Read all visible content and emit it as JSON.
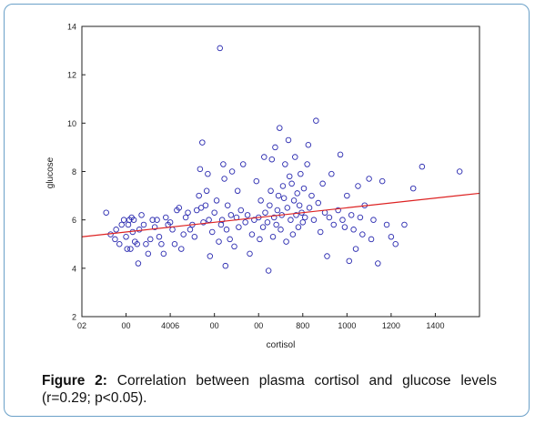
{
  "chart_data": {
    "type": "scatter",
    "xlabel": "cortisol",
    "ylabel": "glucose",
    "xlim": [
      -400,
      1400
    ],
    "ylim": [
      2,
      14
    ],
    "x_tick_values": [
      -400,
      -200,
      0,
      200,
      400,
      600,
      800,
      1000,
      1200,
      1400
    ],
    "x_tick_labels": [
      "02",
      "00",
      "4006",
      "00",
      "00",
      "800",
      "1000",
      "1200",
      "1400",
      ""
    ],
    "y_ticks": [
      2,
      4,
      6,
      8,
      10,
      12,
      14
    ],
    "grid": false,
    "marker": "open-circle",
    "colors": {
      "points": "#2b2bb0",
      "regression": "#dd2222",
      "axes": "#222222"
    },
    "regression_line": {
      "x": [
        -400,
        1400
      ],
      "y": [
        5.3,
        7.1
      ]
    },
    "points": [
      [
        -290,
        6.3
      ],
      [
        -270,
        5.4
      ],
      [
        -250,
        5.2
      ],
      [
        -245,
        5.6
      ],
      [
        -230,
        5.0
      ],
      [
        -220,
        5.8
      ],
      [
        -210,
        6.0
      ],
      [
        -200,
        5.3
      ],
      [
        -195,
        4.8
      ],
      [
        -190,
        5.8
      ],
      [
        -185,
        6.0
      ],
      [
        -180,
        4.8
      ],
      [
        -175,
        6.1
      ],
      [
        -170,
        5.5
      ],
      [
        -165,
        6.0
      ],
      [
        -160,
        5.1
      ],
      [
        -150,
        5.0
      ],
      [
        -145,
        4.2
      ],
      [
        -140,
        5.6
      ],
      [
        -130,
        6.2
      ],
      [
        -120,
        5.8
      ],
      [
        -110,
        5.0
      ],
      [
        -100,
        4.6
      ],
      [
        -90,
        5.2
      ],
      [
        -80,
        6.0
      ],
      [
        -70,
        5.7
      ],
      [
        -60,
        6.0
      ],
      [
        -50,
        5.3
      ],
      [
        -40,
        5.0
      ],
      [
        -30,
        4.6
      ],
      [
        -20,
        6.1
      ],
      [
        -10,
        5.8
      ],
      [
        0,
        5.9
      ],
      [
        10,
        5.6
      ],
      [
        20,
        5.0
      ],
      [
        30,
        6.4
      ],
      [
        40,
        6.5
      ],
      [
        50,
        4.8
      ],
      [
        60,
        5.4
      ],
      [
        70,
        6.1
      ],
      [
        80,
        6.3
      ],
      [
        90,
        5.6
      ],
      [
        100,
        5.8
      ],
      [
        110,
        5.3
      ],
      [
        120,
        6.4
      ],
      [
        130,
        7.0
      ],
      [
        135,
        8.1
      ],
      [
        140,
        6.5
      ],
      [
        145,
        9.2
      ],
      [
        150,
        5.9
      ],
      [
        160,
        6.6
      ],
      [
        165,
        7.2
      ],
      [
        170,
        7.9
      ],
      [
        175,
        6.0
      ],
      [
        180,
        4.5
      ],
      [
        190,
        5.5
      ],
      [
        200,
        6.3
      ],
      [
        210,
        6.8
      ],
      [
        220,
        5.1
      ],
      [
        225,
        13.1
      ],
      [
        230,
        5.8
      ],
      [
        235,
        6.0
      ],
      [
        240,
        8.3
      ],
      [
        245,
        7.7
      ],
      [
        250,
        4.1
      ],
      [
        255,
        5.6
      ],
      [
        260,
        6.6
      ],
      [
        270,
        5.2
      ],
      [
        275,
        6.2
      ],
      [
        280,
        8.0
      ],
      [
        290,
        4.9
      ],
      [
        300,
        6.1
      ],
      [
        305,
        7.2
      ],
      [
        310,
        5.7
      ],
      [
        320,
        6.4
      ],
      [
        330,
        8.3
      ],
      [
        340,
        5.9
      ],
      [
        350,
        6.2
      ],
      [
        360,
        4.6
      ],
      [
        370,
        5.4
      ],
      [
        380,
        6.0
      ],
      [
        390,
        7.6
      ],
      [
        400,
        6.1
      ],
      [
        405,
        5.2
      ],
      [
        410,
        6.8
      ],
      [
        420,
        5.7
      ],
      [
        425,
        8.6
      ],
      [
        430,
        6.3
      ],
      [
        440,
        5.9
      ],
      [
        445,
        3.9
      ],
      [
        450,
        6.6
      ],
      [
        455,
        7.2
      ],
      [
        460,
        8.5
      ],
      [
        465,
        5.3
      ],
      [
        470,
        6.1
      ],
      [
        475,
        9.0
      ],
      [
        480,
        5.8
      ],
      [
        485,
        6.4
      ],
      [
        490,
        7.0
      ],
      [
        495,
        9.8
      ],
      [
        500,
        5.6
      ],
      [
        505,
        6.2
      ],
      [
        510,
        7.4
      ],
      [
        515,
        6.9
      ],
      [
        520,
        8.3
      ],
      [
        525,
        5.1
      ],
      [
        530,
        6.5
      ],
      [
        535,
        9.3
      ],
      [
        540,
        7.8
      ],
      [
        545,
        6.0
      ],
      [
        550,
        7.5
      ],
      [
        555,
        5.4
      ],
      [
        560,
        6.8
      ],
      [
        565,
        8.6
      ],
      [
        570,
        6.2
      ],
      [
        575,
        7.1
      ],
      [
        580,
        5.7
      ],
      [
        585,
        6.6
      ],
      [
        590,
        7.9
      ],
      [
        595,
        6.3
      ],
      [
        600,
        5.9
      ],
      [
        605,
        7.3
      ],
      [
        610,
        6.1
      ],
      [
        620,
        8.3
      ],
      [
        625,
        9.1
      ],
      [
        630,
        6.5
      ],
      [
        640,
        7.0
      ],
      [
        650,
        6.0
      ],
      [
        660,
        10.1
      ],
      [
        670,
        6.7
      ],
      [
        680,
        5.5
      ],
      [
        690,
        7.5
      ],
      [
        700,
        6.3
      ],
      [
        710,
        4.5
      ],
      [
        720,
        6.1
      ],
      [
        730,
        7.9
      ],
      [
        740,
        5.8
      ],
      [
        760,
        6.4
      ],
      [
        770,
        8.7
      ],
      [
        780,
        6.0
      ],
      [
        790,
        5.7
      ],
      [
        800,
        7.0
      ],
      [
        810,
        4.3
      ],
      [
        820,
        6.2
      ],
      [
        830,
        5.6
      ],
      [
        840,
        4.8
      ],
      [
        850,
        7.4
      ],
      [
        860,
        6.1
      ],
      [
        870,
        5.4
      ],
      [
        880,
        6.6
      ],
      [
        900,
        7.7
      ],
      [
        910,
        5.2
      ],
      [
        920,
        6.0
      ],
      [
        940,
        4.2
      ],
      [
        960,
        7.6
      ],
      [
        980,
        5.8
      ],
      [
        1000,
        5.3
      ],
      [
        1020,
        5.0
      ],
      [
        1060,
        5.8
      ],
      [
        1100,
        7.3
      ],
      [
        1140,
        8.2
      ],
      [
        1310,
        8.0
      ]
    ]
  },
  "caption": {
    "label": "Figure 2:",
    "text": " Correlation between plasma cortisol and glucose levels (r=0.29; p<0.05)."
  }
}
